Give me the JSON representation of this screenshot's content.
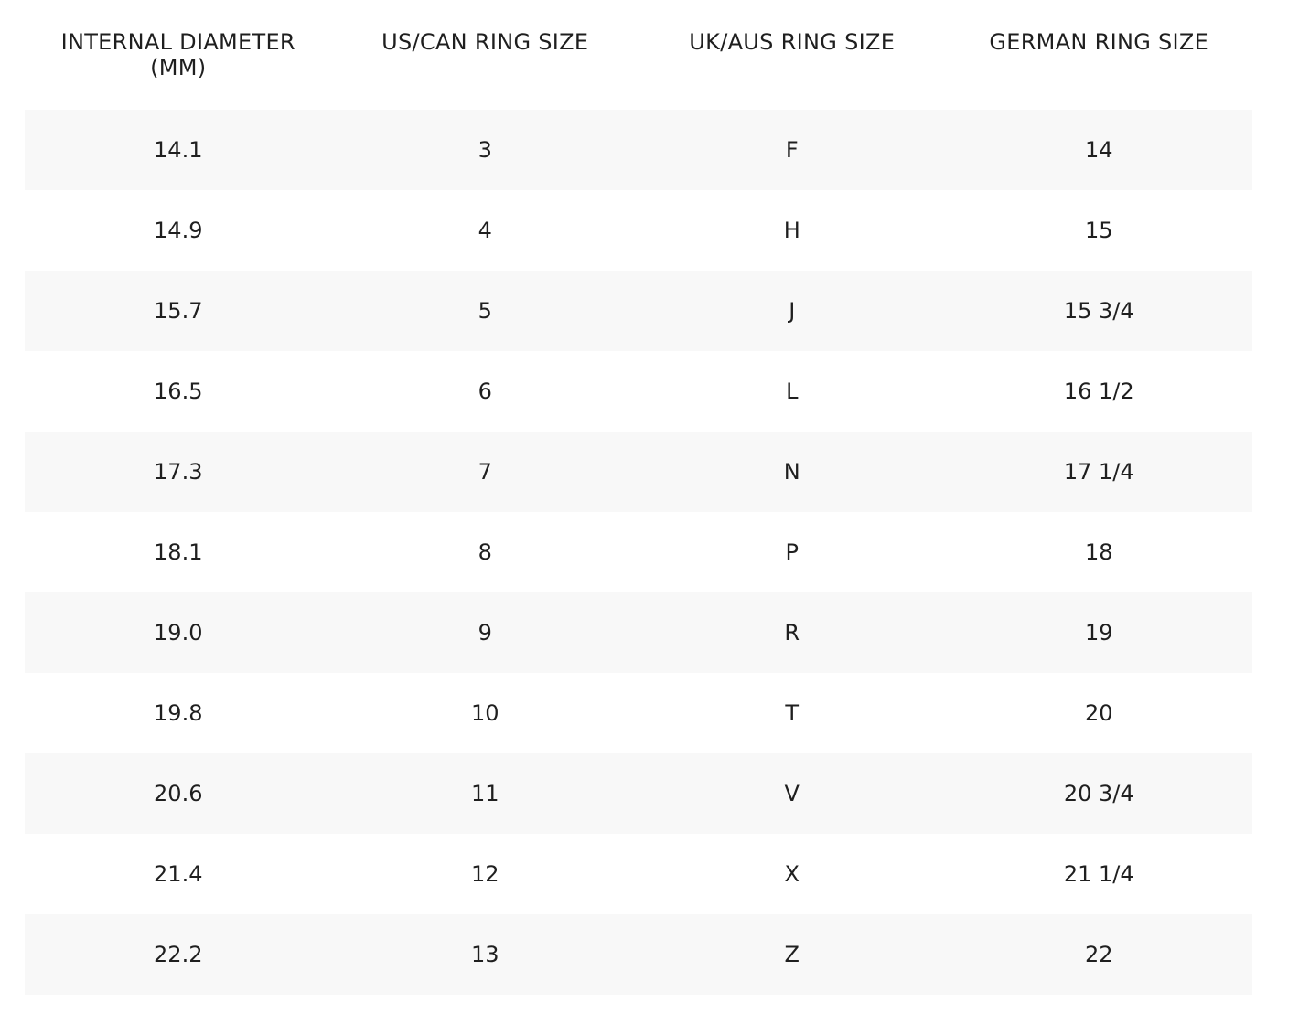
{
  "table": {
    "header": [
      "INTERNAL DIAMETER (MM)",
      "US/CAN RING SIZE",
      "UK/AUS RING SIZE",
      "GERMAN RING SIZE"
    ],
    "rows": [
      [
        "14.1",
        "3",
        "F",
        "14"
      ],
      [
        "14.9",
        "4",
        "H",
        "15"
      ],
      [
        "15.7",
        "5",
        "J",
        "15 3/4"
      ],
      [
        "16.5",
        "6",
        "L",
        "16 1/2"
      ],
      [
        "17.3",
        "7",
        "N",
        "17 1/4"
      ],
      [
        "18.1",
        "8",
        "P",
        "18"
      ],
      [
        "19.0",
        "9",
        "R",
        "19"
      ],
      [
        "19.8",
        "10",
        "T",
        "20"
      ],
      [
        "20.6",
        "11",
        "V",
        "20 3/4"
      ],
      [
        "21.4",
        "12",
        "X",
        "21 1/4"
      ],
      [
        "22.2",
        "13",
        "Z",
        "22"
      ]
    ]
  }
}
